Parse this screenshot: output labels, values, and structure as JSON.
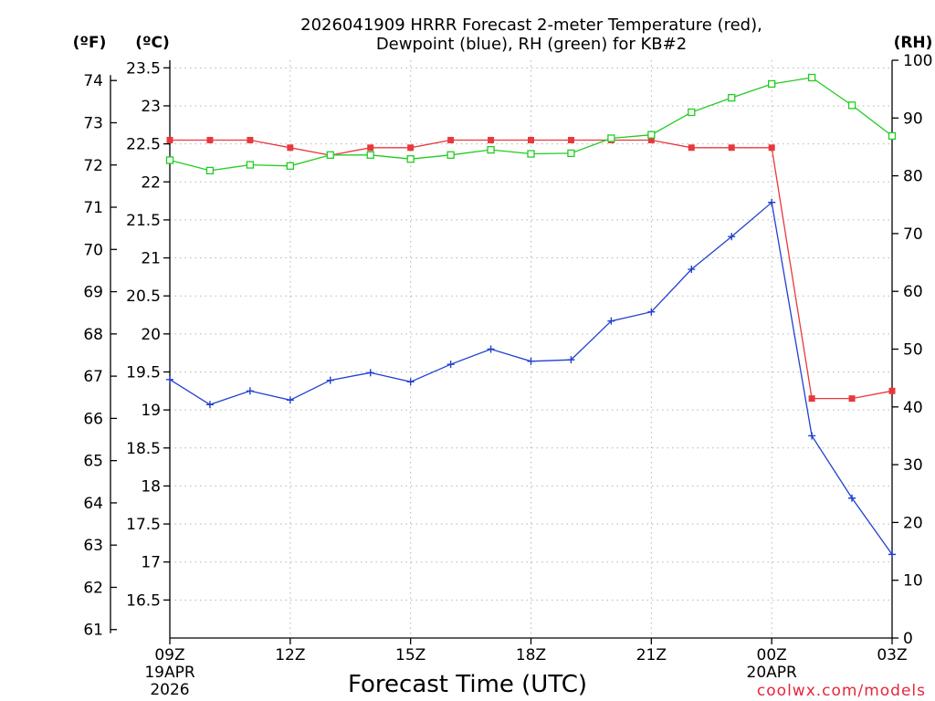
{
  "chart_data": {
    "type": "line",
    "title_line1": "2026041909 HRRR Forecast 2-meter Temperature (red),",
    "title_line2": "Dewpoint (blue), RH (green) for KB#2",
    "xlabel": "Forecast Time (UTC)",
    "credit": "coolwx.com/models",
    "units": {
      "f": "(ºF)",
      "c": "(ºC)",
      "rh": "(RH)"
    },
    "x_hours": [
      0,
      1,
      2,
      3,
      4,
      5,
      6,
      7,
      8,
      9,
      10,
      11,
      12,
      13,
      14,
      15,
      16,
      17,
      18
    ],
    "x_ticks": [
      {
        "hour": 0,
        "label": "09Z",
        "date1": "19APR",
        "date2": "2026"
      },
      {
        "hour": 3,
        "label": "12Z"
      },
      {
        "hour": 6,
        "label": "15Z"
      },
      {
        "hour": 9,
        "label": "18Z"
      },
      {
        "hour": 12,
        "label": "21Z"
      },
      {
        "hour": 15,
        "label": "00Z",
        "date1": "20APR"
      },
      {
        "hour": 18,
        "label": "03Z"
      }
    ],
    "c_axis": {
      "min": 16,
      "max": 23.6,
      "ticks": [
        "16.5",
        "17",
        "17.5",
        "18",
        "18.5",
        "19",
        "19.5",
        "20",
        "20.5",
        "21",
        "21.5",
        "22",
        "22.5",
        "23",
        "23.5"
      ]
    },
    "f_axis": {
      "ticks": [
        "61",
        "62",
        "63",
        "64",
        "65",
        "66",
        "67",
        "68",
        "69",
        "70",
        "71",
        "72",
        "73",
        "74"
      ]
    },
    "rh_axis": {
      "min": 0,
      "max": 100,
      "ticks": [
        "0",
        "10",
        "20",
        "30",
        "40",
        "50",
        "60",
        "70",
        "80",
        "90",
        "100"
      ]
    },
    "series": [
      {
        "name": "Temperature",
        "axis": "c",
        "color": "#e8383d",
        "marker": "filled-square",
        "values": [
          22.55,
          22.55,
          22.55,
          22.45,
          22.35,
          22.45,
          22.45,
          22.55,
          22.55,
          22.55,
          22.55,
          22.55,
          22.55,
          22.45,
          22.45,
          22.45,
          19.15,
          19.15,
          19.25
        ]
      },
      {
        "name": "Dewpoint",
        "axis": "c",
        "color": "#2040d0",
        "marker": "plus",
        "values": [
          19.4,
          19.07,
          19.25,
          19.13,
          19.39,
          19.49,
          19.37,
          19.6,
          19.8,
          19.64,
          19.66,
          20.17,
          20.29,
          20.85,
          21.28,
          21.73,
          18.66,
          17.84,
          17.1
        ]
      },
      {
        "name": "RH",
        "axis": "rh",
        "color": "#22cc22",
        "marker": "open-square",
        "values": [
          82.7,
          80.9,
          81.9,
          81.7,
          83.6,
          83.6,
          82.9,
          83.6,
          84.5,
          83.8,
          83.9,
          86.5,
          87.1,
          91.0,
          93.5,
          95.9,
          97.0,
          92.2,
          86.9
        ]
      }
    ]
  }
}
